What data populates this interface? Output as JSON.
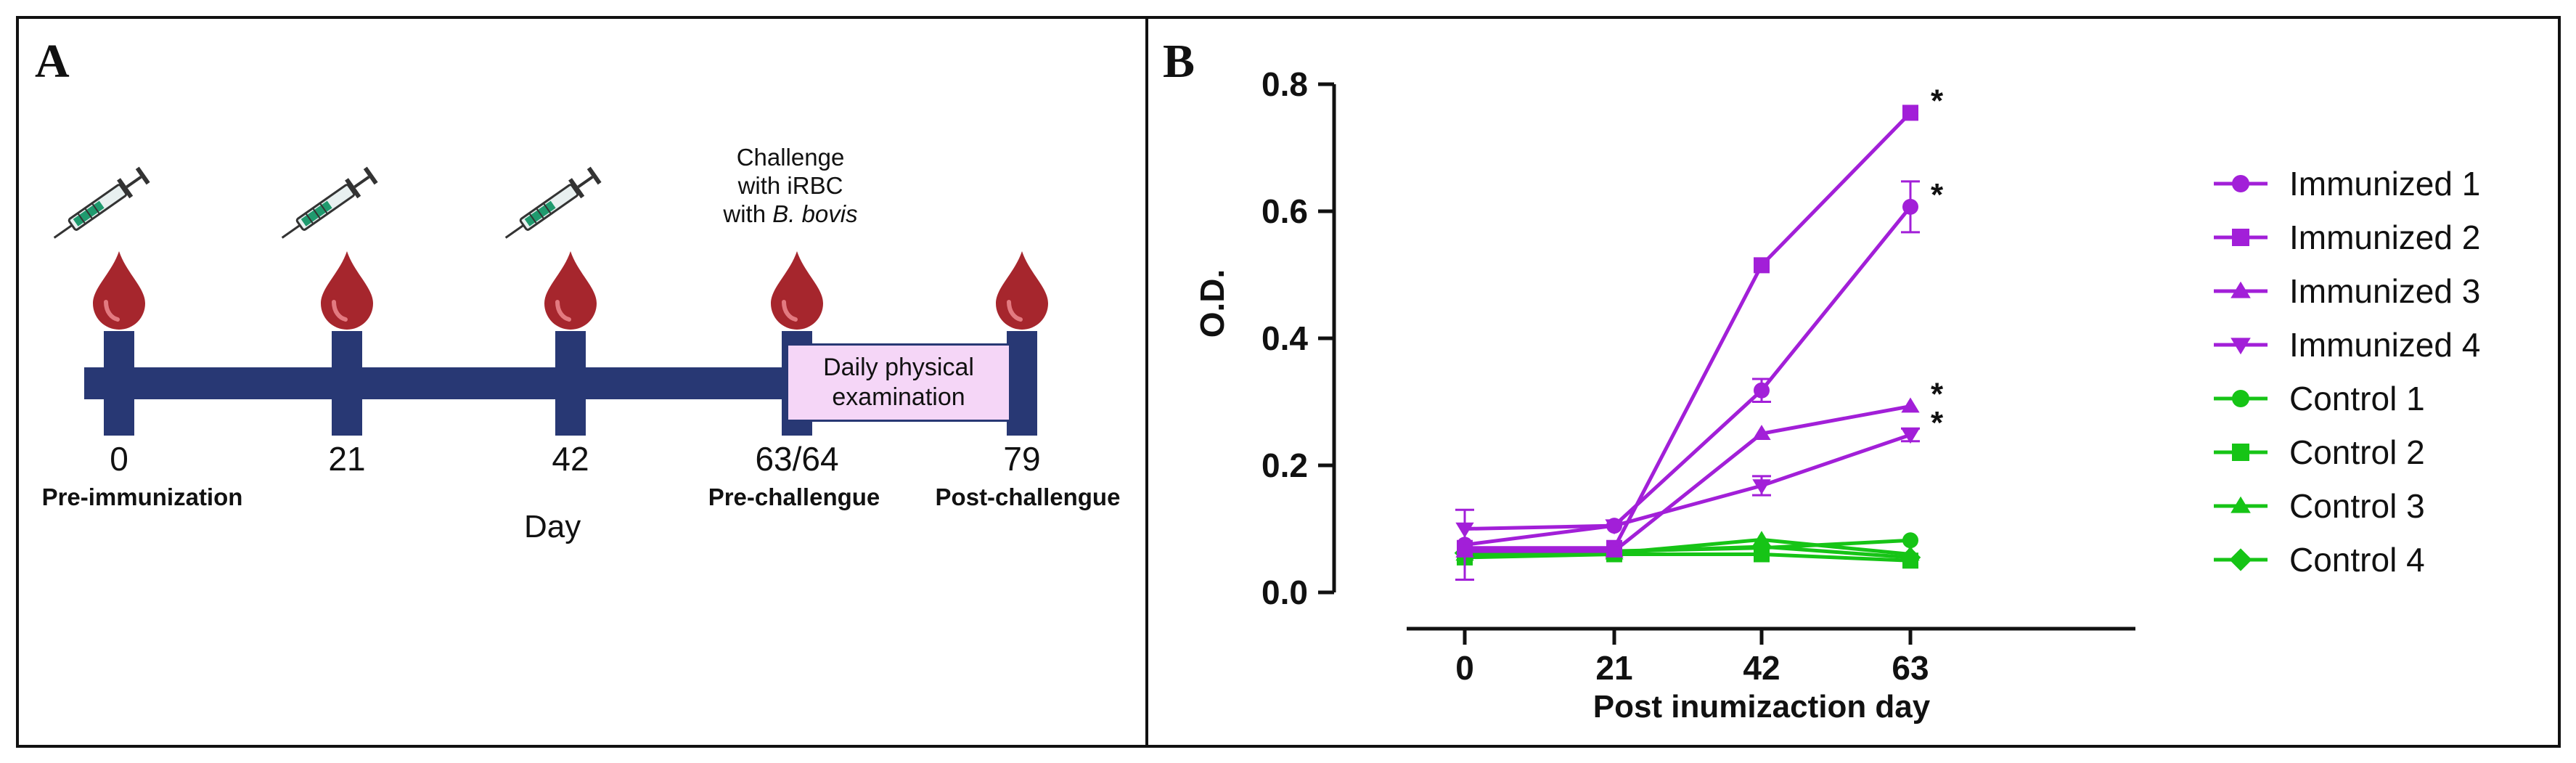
{
  "panelA": {
    "label": "A",
    "timepoints": [
      {
        "day": "0",
        "sublabel": "Pre-immunization",
        "syringe": true
      },
      {
        "day": "21",
        "sublabel": "",
        "syringe": true
      },
      {
        "day": "42",
        "sublabel": "",
        "syringe": true
      },
      {
        "day": "63/64",
        "sublabel": "Pre-challengue",
        "syringe": false
      },
      {
        "day": "79",
        "sublabel": "Post-challengue",
        "syringe": false
      }
    ],
    "challenge_line1": "Challenge",
    "challenge_line2": "with iRBC",
    "challenge_line3_prefix": "with",
    "challenge_line3_italic": "B. bovis",
    "exam_line1": "Daily physical",
    "exam_line2": "examination",
    "axis_label": "Day",
    "icons": {
      "syringe": "syringe-icon",
      "drop": "blood-drop-icon"
    },
    "colors": {
      "timeline": "#283874",
      "drop": "#a6262d",
      "exam_fill": "#f5d6f7"
    }
  },
  "panelB": {
    "label": "B"
  },
  "chart_data": {
    "type": "line",
    "title": "",
    "xlabel": "Post inumizaction day",
    "ylabel": "O.D.",
    "categories": [
      "0",
      "21",
      "42",
      "63"
    ],
    "ylim": [
      0.0,
      0.8
    ],
    "yticks": [
      "0.0",
      "0.2",
      "0.4",
      "0.6",
      "0.8"
    ],
    "grid": false,
    "legend_position": "right",
    "series": [
      {
        "name": "Immunized 1",
        "marker": "circle",
        "color": "#a21fd8",
        "values": [
          0.075,
          0.105,
          0.318,
          0.607
        ],
        "errors": [
          0.055,
          0.0,
          0.018,
          0.04
        ],
        "significant": [
          false,
          false,
          false,
          true
        ]
      },
      {
        "name": "Immunized 2",
        "marker": "square",
        "color": "#a21fd8",
        "values": [
          0.07,
          0.07,
          0.515,
          0.755
        ],
        "errors": [
          0,
          0,
          0,
          0
        ],
        "significant": [
          false,
          false,
          false,
          true
        ]
      },
      {
        "name": "Immunized 3",
        "marker": "triangle-up",
        "color": "#a21fd8",
        "values": [
          0.065,
          0.065,
          0.25,
          0.293
        ],
        "errors": [
          0,
          0,
          0,
          0
        ],
        "significant": [
          false,
          false,
          false,
          true
        ]
      },
      {
        "name": "Immunized 4",
        "marker": "triangle-down",
        "color": "#a21fd8",
        "values": [
          0.1,
          0.105,
          0.168,
          0.248
        ],
        "errors": [
          0,
          0,
          0.015,
          0.01
        ],
        "significant": [
          false,
          false,
          false,
          true
        ]
      },
      {
        "name": "Control 1",
        "marker": "circle",
        "color": "#16c416",
        "values": [
          0.06,
          0.065,
          0.07,
          0.082
        ],
        "errors": [
          0,
          0,
          0,
          0
        ],
        "significant": [
          false,
          false,
          false,
          false
        ]
      },
      {
        "name": "Control 2",
        "marker": "square",
        "color": "#16c416",
        "values": [
          0.055,
          0.06,
          0.06,
          0.05
        ],
        "errors": [
          0,
          0,
          0,
          0
        ],
        "significant": [
          false,
          false,
          false,
          false
        ]
      },
      {
        "name": "Control 3",
        "marker": "triangle-up",
        "color": "#16c416",
        "values": [
          0.06,
          0.062,
          0.083,
          0.06
        ],
        "errors": [
          0,
          0,
          0,
          0
        ],
        "significant": [
          false,
          false,
          false,
          false
        ]
      },
      {
        "name": "Control 4",
        "marker": "diamond",
        "color": "#16c416",
        "values": [
          0.062,
          0.064,
          0.072,
          0.055
        ],
        "errors": [
          0,
          0,
          0,
          0
        ],
        "significant": [
          false,
          false,
          false,
          false
        ]
      }
    ],
    "annotation": "*"
  }
}
